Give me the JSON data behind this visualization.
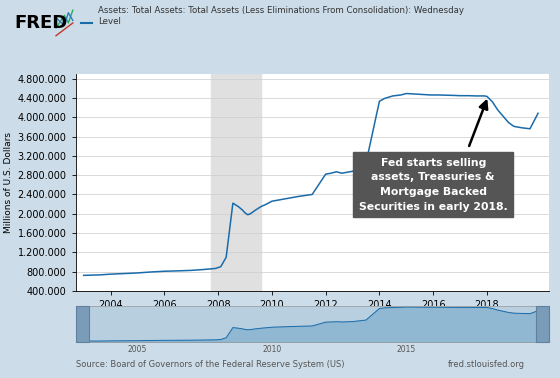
{
  "legend_label": "Assets: Total Assets: Total Assets (Less Eliminations From Consolidation): Wednesday\nLevel",
  "ylabel": "Millions of U.S. Dollars",
  "source_text": "Source: Board of Governors of the Federal Reserve System (US)",
  "source_url": "fred.stlouisfed.org",
  "background_outer": "#ccdce8",
  "background_plot": "#ffffff",
  "recession_color": "#e0e0e0",
  "recession_start": 2007.75,
  "recession_end": 2009.58,
  "line_color": "#1a6baa",
  "annotation_box_color": "#555555",
  "annotation_text": "Fed starts selling\nassets, Treasuries &\nMortgage Backed\nSecurities in early 2018.",
  "annotation_text_color": "#ffffff",
  "ylim": [
    400000,
    4900000
  ],
  "yticks": [
    400000,
    800000,
    1200000,
    1600000,
    2000000,
    2400000,
    2800000,
    3200000,
    3600000,
    4000000,
    4400000,
    4800000
  ],
  "xlim_main": [
    2002.7,
    2020.3
  ],
  "xticks_main": [
    2004,
    2006,
    2008,
    2010,
    2012,
    2014,
    2016,
    2018
  ],
  "data_years": [
    2003.0,
    2003.3,
    2003.6,
    2004.0,
    2004.5,
    2005.0,
    2005.5,
    2006.0,
    2006.5,
    2007.0,
    2007.5,
    2007.9,
    2008.1,
    2008.3,
    2008.55,
    2008.75,
    2008.9,
    2009.0,
    2009.1,
    2009.2,
    2009.4,
    2009.6,
    2009.8,
    2010.0,
    2010.5,
    2011.0,
    2011.5,
    2012.0,
    2012.2,
    2012.4,
    2012.6,
    2012.8,
    2013.0,
    2013.5,
    2014.0,
    2014.2,
    2014.5,
    2014.8,
    2015.0,
    2015.3,
    2015.6,
    2015.9,
    2016.2,
    2016.5,
    2016.8,
    2017.0,
    2017.3,
    2017.6,
    2017.9,
    2018.0,
    2018.2,
    2018.4,
    2018.6,
    2018.8,
    2019.0,
    2019.3,
    2019.6,
    2019.9
  ],
  "data_values": [
    725000,
    730000,
    735000,
    750000,
    762000,
    775000,
    795000,
    810000,
    818000,
    828000,
    848000,
    868000,
    905000,
    1100000,
    2220000,
    2150000,
    2080000,
    2020000,
    1980000,
    2000000,
    2080000,
    2150000,
    2200000,
    2260000,
    2310000,
    2360000,
    2400000,
    2820000,
    2840000,
    2870000,
    2840000,
    2860000,
    2880000,
    3050000,
    4330000,
    4390000,
    4440000,
    4460000,
    4490000,
    4480000,
    4470000,
    4460000,
    4460000,
    4455000,
    4450000,
    4445000,
    4445000,
    4440000,
    4440000,
    4430000,
    4320000,
    4150000,
    4020000,
    3890000,
    3810000,
    3780000,
    3760000,
    4080000
  ]
}
